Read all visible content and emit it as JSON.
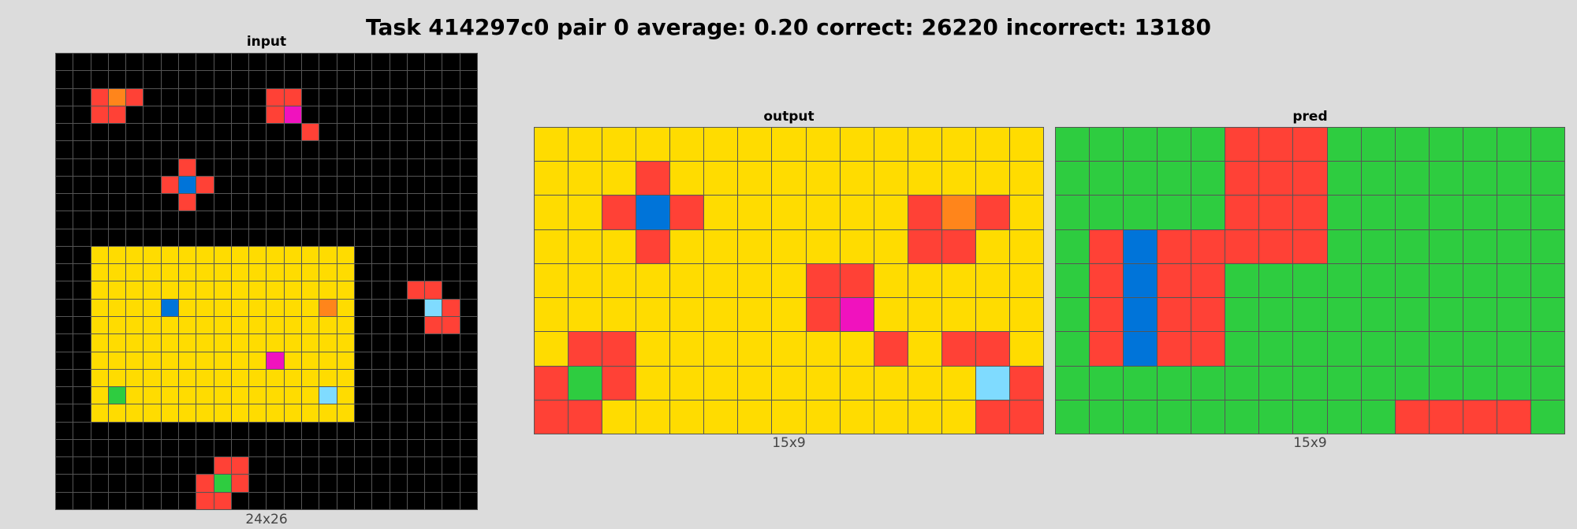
{
  "title": "Task 414297c0 pair 0 average: 0.20 correct: 26220 incorrect: 13180",
  "palette": {
    "0": "#000000",
    "2": "#ff4136",
    "1": "#0074d9",
    "3": "#2ecc40",
    "4": "#ffdc00",
    "6": "#f012be",
    "7": "#ff851b",
    "8": "#7fdbff"
  },
  "panels": [
    {
      "label": "input",
      "dims": "24x26",
      "rows": [
        "000000000000000000000000",
        "000000000000000000000000",
        "002720000000220000000000",
        "002200000000260000000000",
        "000000000000002000000000",
        "000000000000000000000000",
        "000000020000000000000000",
        "000000212000000000000000",
        "000000020000000000000000",
        "000000000000000000000000",
        "000000000000000000000000",
        "004444444444444440000000",
        "004444444444444440000000",
        "004444444444444440002200",
        "004444144444444740000820",
        "004444444444444440000220",
        "004444444444444440000000",
        "004444444444644440000000",
        "004444444444444440000000",
        "004344444444444840000000",
        "004444444444444440000000",
        "000000000000000000000000",
        "000000000000000000000000",
        "000000000220000000000000",
        "000000002320000000000000",
        "000000002200000000000000"
      ]
    },
    {
      "label": "output",
      "dims": "15x9",
      "rows": [
        "444444444444444",
        "444244444444444",
        "442124444442724",
        "444244444442244",
        "444444442244444",
        "444444442644444",
        "422444444424224",
        "232444444444482",
        "224444444444422"
      ]
    },
    {
      "label": "pred",
      "dims": "15x9",
      "rows": [
        "333332223333333",
        "333332223333333",
        "333332223333333",
        "321222223333333",
        "321223333333333",
        "321223333333333",
        "321223333333333",
        "333333333333333",
        "333333333322223"
      ]
    }
  ]
}
